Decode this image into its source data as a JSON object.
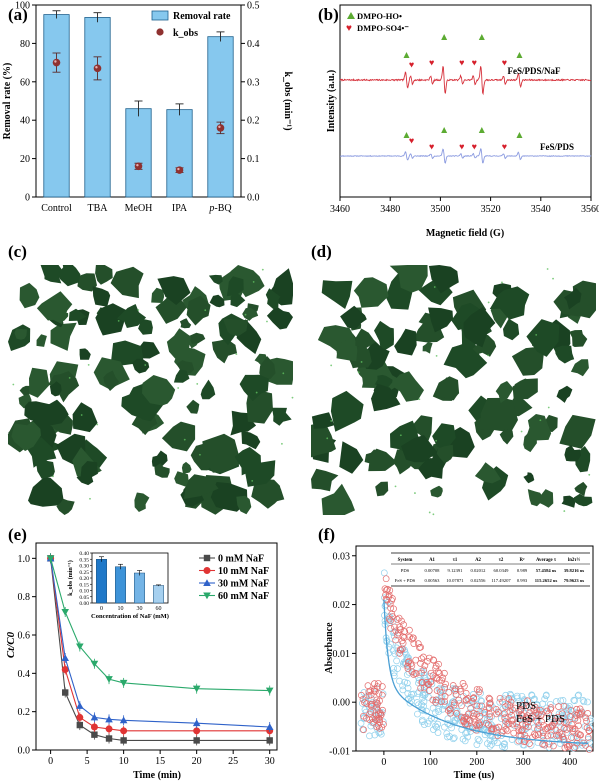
{
  "figure": {
    "panel_labels": [
      "(a)",
      "(b)",
      "(c)",
      "(d)",
      "(e)",
      "(f)"
    ]
  },
  "colors": {
    "bar_fill": "#86c8ee",
    "bar_stroke": "#1c5f8d",
    "kobs_point": "#8f3130",
    "epr_red": "#d6313b",
    "epr_blue": "#8b9be0",
    "marker_hoo": "#5cab32",
    "marker_so4": "#d61f2b",
    "microscopy_bg": "#ffffff",
    "microscopy_particle": "#1e4a26",
    "e_0mM": "#4a4a4a",
    "e_10mM": "#e03434",
    "e_30mM": "#2f62c9",
    "e_60mM": "#2aa96b",
    "f_pds": "#8fd0ec",
    "f_fes": "#e36b6b",
    "f_fit": "#4a9fd4"
  },
  "chart_data": [
    {
      "panel": "(a)",
      "type": "bar",
      "categories": [
        "Control",
        "TBA",
        "MeOH",
        "IPA",
        "p-BQ"
      ],
      "series": [
        {
          "name": "Removal rate",
          "axis": "left",
          "values": [
            95,
            93.5,
            46,
            45.5,
            83.5
          ],
          "errors": [
            2,
            2.5,
            4,
            3,
            2.5
          ]
        },
        {
          "name": "k_obs",
          "axis": "right",
          "values": [
            0.35,
            0.335,
            0.08,
            0.07,
            0.18
          ],
          "errors": [
            0.025,
            0.03,
            0.008,
            0.006,
            0.015
          ]
        }
      ],
      "xlabel": "",
      "ylabel": "Removal rate (%)",
      "y2label": "k_obs (min⁻¹)",
      "ylim": [
        0,
        100
      ],
      "y2lim": [
        0,
        0.5
      ],
      "yticks": [
        0,
        20,
        40,
        60,
        80,
        100
      ],
      "y2ticks": [
        0.0,
        0.1,
        0.2,
        0.3,
        0.4,
        0.5
      ],
      "legend": [
        "Removal rate",
        "k_obs"
      ],
      "legend_position": "top-right"
    },
    {
      "panel": "(b)",
      "type": "line",
      "xlabel": "Magnetic field (G)",
      "ylabel": "Intensity (a.u.)",
      "xlim": [
        3460,
        3560
      ],
      "xticks": [
        3460,
        3480,
        3500,
        3520,
        3540,
        3560
      ],
      "series": [
        {
          "name": "FeS/PDS/NaF"
        },
        {
          "name": "FeS/PDS"
        }
      ],
      "hoo_peaks": [
        3486.5,
        3501.5,
        3516.5,
        3531.5
      ],
      "so4_peaks": [
        3488.5,
        3496.5,
        3508.5,
        3513.5,
        3525.5
      ],
      "legend": [
        "DMPO-HO•",
        "DMPO-SO4•⁻"
      ],
      "legend_position": "top-left"
    },
    {
      "panel": "(e)",
      "type": "line",
      "x": [
        0,
        2,
        4,
        6,
        8,
        10,
        20,
        30
      ],
      "xlabel": "Time (min)",
      "ylabel": "Ct/C0",
      "xlim": [
        -2,
        31
      ],
      "ylim": [
        0,
        1.08
      ],
      "xticks": [
        0,
        5,
        10,
        15,
        20,
        25,
        30
      ],
      "yticks": [
        0.0,
        0.2,
        0.4,
        0.6,
        0.8,
        1.0
      ],
      "series": [
        {
          "name": "0 mM NaF",
          "values": [
            1.0,
            0.3,
            0.13,
            0.08,
            0.06,
            0.05,
            0.05,
            0.05
          ]
        },
        {
          "name": "10 mM NaF",
          "values": [
            1.0,
            0.42,
            0.17,
            0.12,
            0.11,
            0.1,
            0.1,
            0.1
          ]
        },
        {
          "name": "30 mM NaF",
          "values": [
            1.0,
            0.48,
            0.23,
            0.17,
            0.16,
            0.155,
            0.14,
            0.12
          ]
        },
        {
          "name": "60 mM NaF",
          "values": [
            1.0,
            0.72,
            0.54,
            0.45,
            0.37,
            0.35,
            0.32,
            0.31
          ]
        }
      ],
      "legend_position": "top-right",
      "inset": {
        "type": "bar",
        "categories": [
          "0",
          "10",
          "30",
          "60"
        ],
        "values": [
          0.35,
          0.29,
          0.24,
          0.14
        ],
        "errors": [
          0.02,
          0.02,
          0.02,
          0.005
        ],
        "ylabel": "k_obs (min⁻¹)",
        "xlabel": "Concentration of NaF (mM)",
        "ylim": [
          0,
          0.4
        ],
        "yticks": [
          "0.00",
          "0.05",
          "0.10",
          "0.15",
          "0.20",
          "0.25",
          "0.30",
          "0.35",
          "0.40"
        ]
      }
    },
    {
      "panel": "(f)",
      "type": "scatter",
      "xlabel": "Time (us)",
      "ylabel": "Absorbance",
      "xlim": [
        -60,
        450
      ],
      "ylim": [
        -0.01,
        0.032
      ],
      "xticks": [
        0,
        100,
        200,
        300,
        400
      ],
      "yticks": [
        -0.01,
        0.0,
        0.01,
        0.02,
        0.03
      ],
      "series": [
        {
          "name": "PDS"
        },
        {
          "name": "FeS + PDS"
        }
      ],
      "legend_position": "right",
      "table": {
        "headers": [
          "System",
          "A1",
          "τ1",
          "A2",
          "τ2",
          "R²",
          "Average τ",
          "ln2τ½"
        ],
        "rows": [
          [
            "PDS",
            "0.00708",
            "9.12391",
            "0.02012",
            "60.0349",
            "0.989",
            "57.4584 us",
            "39.8216 us"
          ],
          [
            "FeS + PDS",
            "0.00563",
            "10.07871",
            "0.02556",
            "117.49207",
            "0.993",
            "115.2652 us",
            "79.9623 us"
          ]
        ]
      }
    }
  ]
}
